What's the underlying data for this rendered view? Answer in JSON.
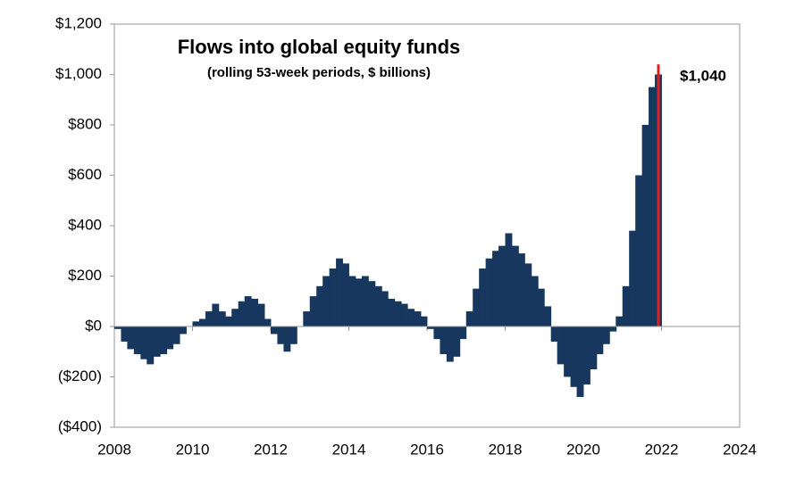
{
  "chart_data": {
    "type": "bar",
    "title": "Flows into global equity funds",
    "subtitle": "(rolling  53-week periods, $ billions)",
    "xlim": [
      2008,
      2024
    ],
    "xticks": [
      2008,
      2010,
      2012,
      2014,
      2016,
      2018,
      2020,
      2022,
      2024
    ],
    "ylim": [
      -400,
      1200
    ],
    "yticks": [
      {
        "value": -400,
        "label": "($400)"
      },
      {
        "value": -200,
        "label": "($200)"
      },
      {
        "value": 0,
        "label": "$0"
      },
      {
        "value": 200,
        "label": "$200"
      },
      {
        "value": 400,
        "label": "$400"
      },
      {
        "value": 600,
        "label": "$600"
      },
      {
        "value": 800,
        "label": "$800"
      },
      {
        "value": 1000,
        "label": "$1,000"
      },
      {
        "value": 1200,
        "label": "$1,200"
      }
    ],
    "grid": false,
    "series": [
      {
        "color": "#17375e",
        "x": [
          2008.0,
          2008.17,
          2008.33,
          2008.5,
          2008.67,
          2008.83,
          2009.0,
          2009.17,
          2009.33,
          2009.5,
          2009.67,
          2009.83,
          2010.0,
          2010.17,
          2010.33,
          2010.5,
          2010.67,
          2010.83,
          2011.0,
          2011.17,
          2011.33,
          2011.5,
          2011.67,
          2011.83,
          2012.0,
          2012.17,
          2012.33,
          2012.5,
          2012.67,
          2012.83,
          2013.0,
          2013.17,
          2013.33,
          2013.5,
          2013.67,
          2013.83,
          2014.0,
          2014.17,
          2014.33,
          2014.5,
          2014.67,
          2014.83,
          2015.0,
          2015.17,
          2015.33,
          2015.5,
          2015.67,
          2015.83,
          2016.0,
          2016.17,
          2016.33,
          2016.5,
          2016.67,
          2016.83,
          2017.0,
          2017.17,
          2017.33,
          2017.5,
          2017.67,
          2017.83,
          2018.0,
          2018.17,
          2018.33,
          2018.5,
          2018.67,
          2018.83,
          2019.0,
          2019.17,
          2019.33,
          2019.5,
          2019.67,
          2019.83,
          2020.0,
          2020.17,
          2020.33,
          2020.5,
          2020.67,
          2020.83,
          2021.0,
          2021.17,
          2021.33,
          2021.5,
          2021.67,
          2021.83
        ],
        "values": [
          -10,
          -60,
          -90,
          -110,
          -130,
          -150,
          -120,
          -110,
          -90,
          -70,
          -30,
          0,
          20,
          30,
          60,
          90,
          60,
          40,
          70,
          100,
          120,
          110,
          90,
          30,
          -30,
          -70,
          -100,
          -70,
          0,
          60,
          120,
          160,
          200,
          230,
          270,
          250,
          200,
          190,
          200,
          180,
          160,
          140,
          110,
          100,
          90,
          70,
          60,
          40,
          -10,
          -50,
          -110,
          -140,
          -120,
          -50,
          60,
          150,
          230,
          270,
          300,
          320,
          370,
          320,
          290,
          250,
          200,
          150,
          80,
          -60,
          -150,
          -200,
          -240,
          -280,
          -230,
          -170,
          -110,
          -70,
          -20,
          40,
          160,
          380,
          600,
          800,
          950,
          1000
        ]
      },
      {
        "color": "#e02020",
        "x": [
          2021.92
        ],
        "values": [
          1040
        ],
        "value_labels": [
          "$1,040"
        ]
      }
    ]
  }
}
